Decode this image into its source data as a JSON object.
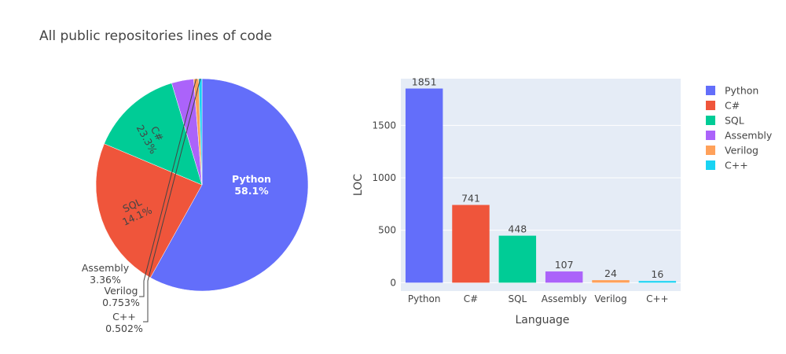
{
  "title": "All public repositories lines of code",
  "colors": [
    "#636efa",
    "#ef553b",
    "#00cc96",
    "#ab63fa",
    "#ffa15a",
    "#19d3f3"
  ],
  "chart_data": [
    {
      "type": "pie",
      "labels": [
        "Python",
        "C#",
        "SQL",
        "Assembly",
        "Verilog",
        "C++"
      ],
      "values": [
        1851,
        741,
        448,
        107,
        24,
        16
      ],
      "percent_labels": [
        "58.1%",
        "23.3%",
        "14.1%",
        "3.36%",
        "0.753%",
        "0.502%"
      ],
      "direction": "clockwise",
      "start": "top"
    },
    {
      "type": "bar",
      "categories": [
        "Python",
        "C#",
        "SQL",
        "Assembly",
        "Verilog",
        "C++"
      ],
      "values": [
        1851,
        741,
        448,
        107,
        24,
        16
      ],
      "xlabel": "Language",
      "ylabel": "LOC",
      "yticks": [
        0,
        500,
        1000,
        1500
      ],
      "ylim": [
        -80,
        1945
      ],
      "grid": true
    }
  ],
  "legend": {
    "placement": "right",
    "items": [
      "Python",
      "C#",
      "SQL",
      "Assembly",
      "Verilog",
      "C++"
    ]
  }
}
